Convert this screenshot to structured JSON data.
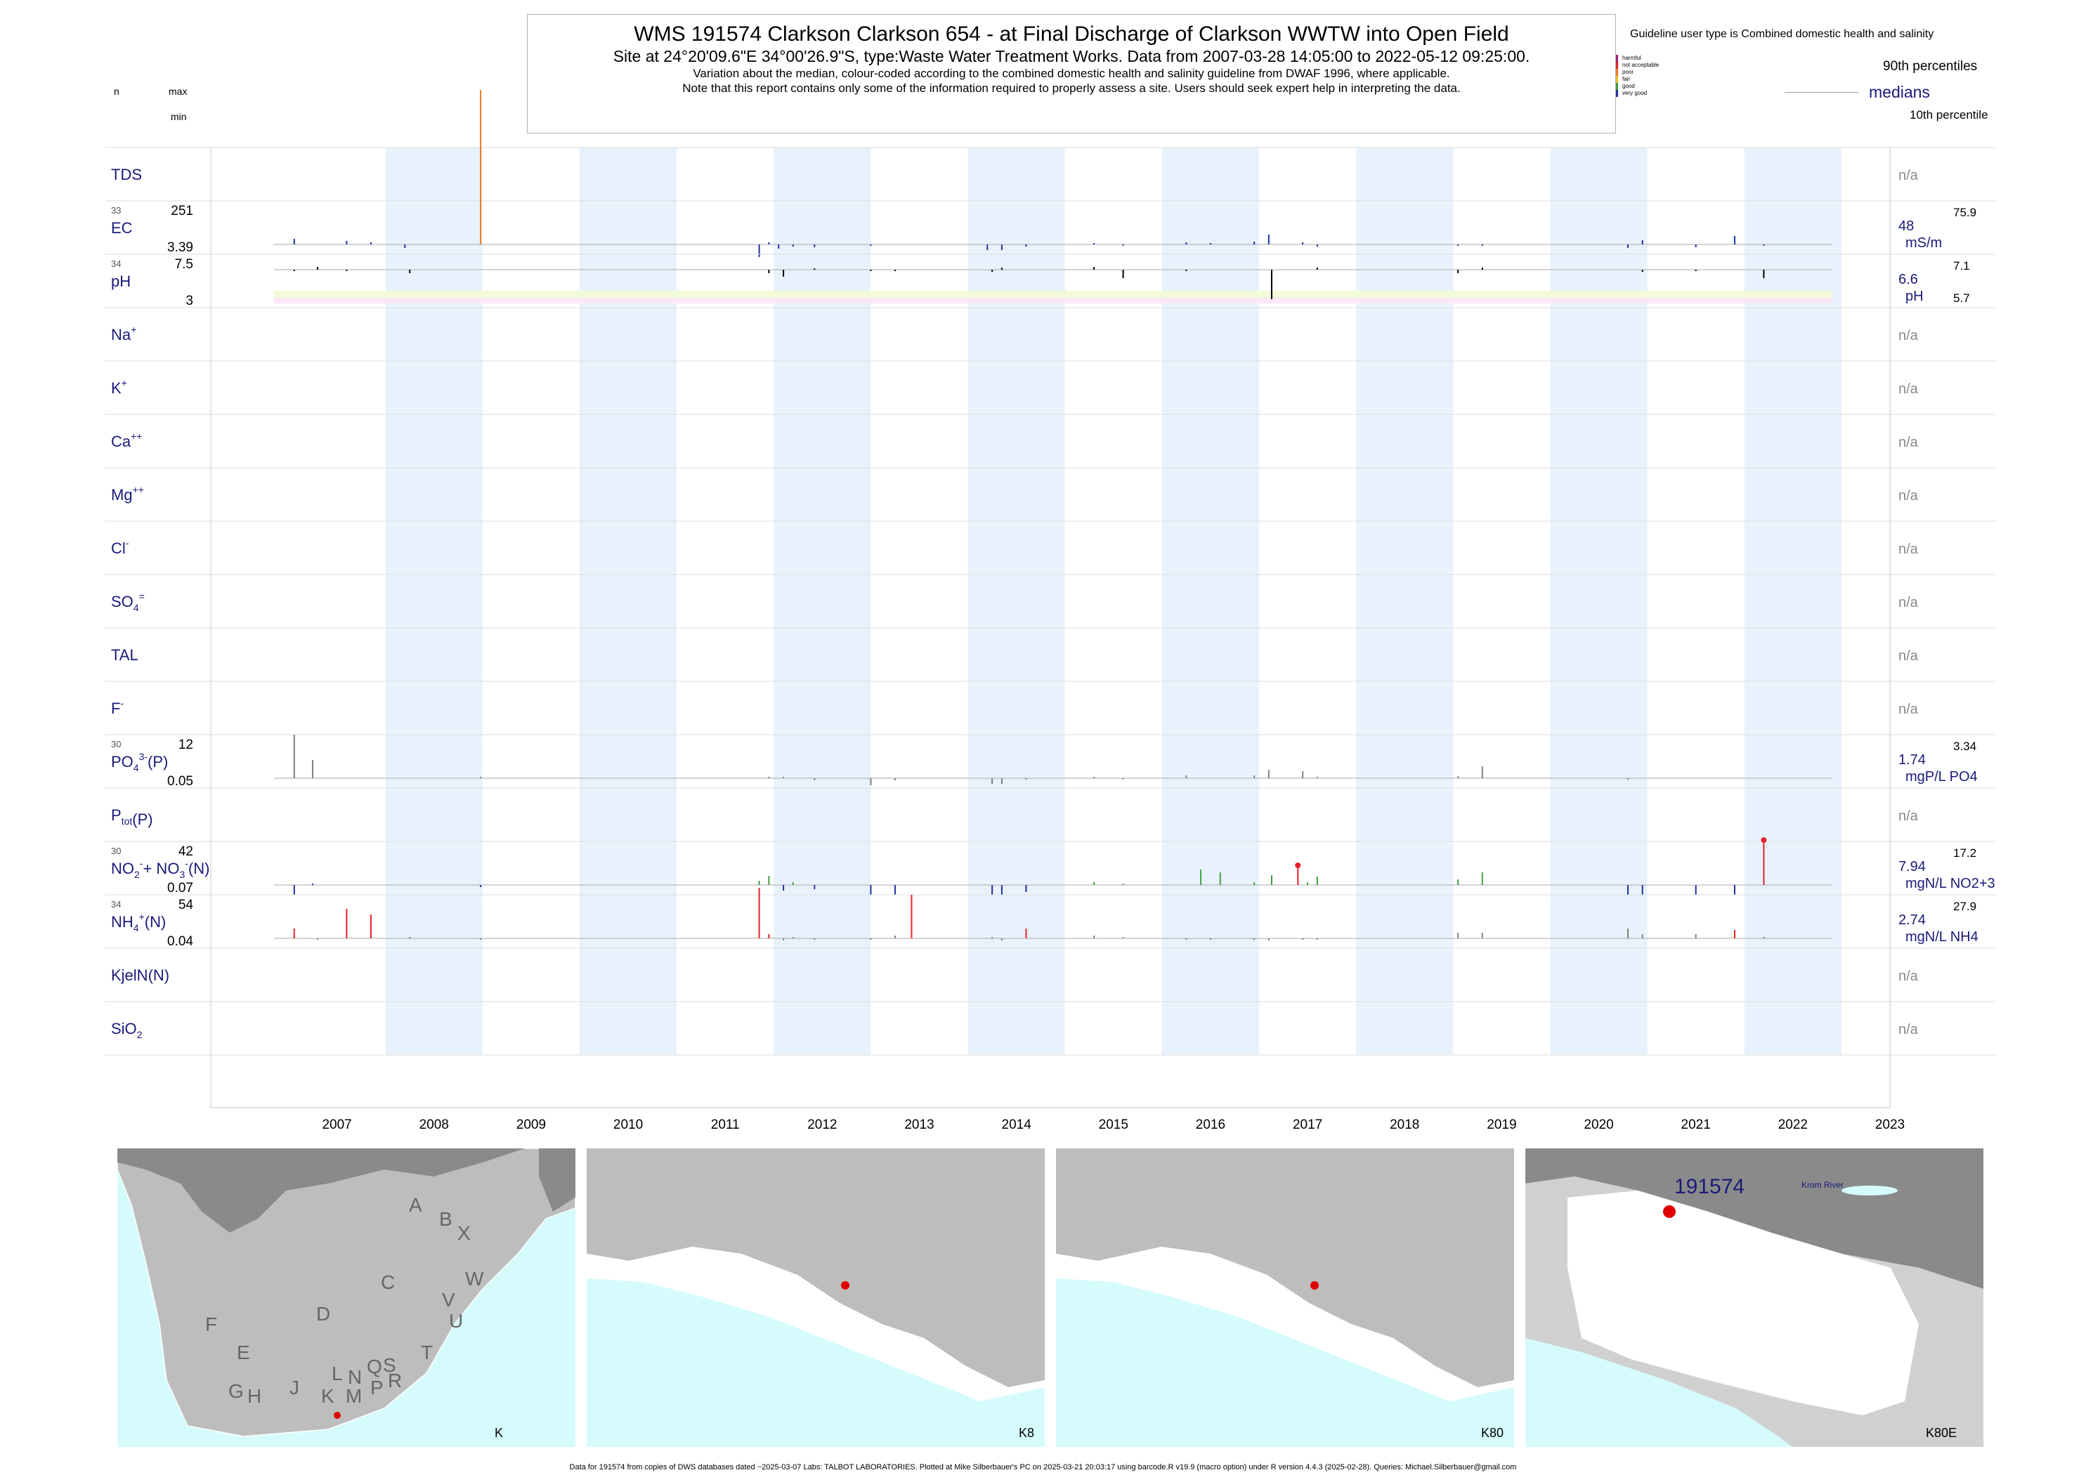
{
  "header": {
    "title": "WMS 191574  Clarkson Clarkson 654 - at Final Discharge of Clarkson WWTW into Open Field",
    "subtitle": "Site at 24°20'09.6\"E 34°00'26.9\"S, type:Waste Water Treatment Works.  Data from 2007-03-28 14:05:00 to 2022-05-12 09:25:00.",
    "note1": "Variation about the median,  colour-coded according to the combined domestic health and salinity guideline from DWAF 1996, where applicable.",
    "note2": "Note that this report contains only some of the information required to properly assess a site. Users should seek expert help in interpreting the data."
  },
  "legend": {
    "n_label": "n",
    "max_label": "max",
    "min_label": "min",
    "guideline_title": "Guideline user type is Combined domestic health and salinity",
    "classes": [
      {
        "label": "harmful",
        "color": "#a0207a"
      },
      {
        "label": "not acceptable",
        "color": "#e8202a"
      },
      {
        "label": "poor",
        "color": "#f07820"
      },
      {
        "label": "fair",
        "color": "#e8c020"
      },
      {
        "label": "good",
        "color": "#40a040"
      },
      {
        "label": "very good",
        "color": "#2030a0"
      }
    ],
    "p90": "90th percentiles",
    "medians": "medians",
    "p10": "10th percentile"
  },
  "chart_data": {
    "type": "bar",
    "x_ticks": [
      "2007",
      "2008",
      "2009",
      "2010",
      "2011",
      "2012",
      "2013",
      "2014",
      "2015",
      "2016",
      "2017",
      "2018",
      "2019",
      "2020",
      "2021",
      "2022",
      "2023"
    ],
    "xlim": [
      2006.2,
      2023.5
    ],
    "highlight_years": [
      2008,
      2010,
      2012,
      2014,
      2016,
      2018,
      2020,
      2022
    ],
    "rows": [
      {
        "id": "TDS",
        "label": "TDS",
        "na": "n/a"
      },
      {
        "id": "EC",
        "label": "EC",
        "n": "33",
        "max": "251",
        "min": "3.39",
        "median": "48",
        "p90": "75.9",
        "unit": "mS/m",
        "events": [
          [
            2007.06,
            8,
            "#2030a0"
          ],
          [
            2007.6,
            5,
            "#2030a0"
          ],
          [
            2007.85,
            3,
            "#2030a0"
          ],
          [
            2008.2,
            -5,
            "#2030a0"
          ],
          [
            2008.98,
            220,
            "#f07820"
          ],
          [
            2011.85,
            -18,
            "#2030a0"
          ],
          [
            2011.95,
            3,
            "#2030a0"
          ],
          [
            2012.05,
            -6,
            "#2030a0"
          ],
          [
            2012.2,
            -3,
            "#2030a0"
          ],
          [
            2012.42,
            -4,
            "#2030a0"
          ],
          [
            2013.0,
            -2,
            "#2030a0"
          ],
          [
            2014.2,
            -8,
            "#2030a0"
          ],
          [
            2014.35,
            -8,
            "#2030a0"
          ],
          [
            2014.6,
            -3,
            "#2030a0"
          ],
          [
            2015.3,
            2,
            "#2030a0"
          ],
          [
            2015.6,
            -2,
            "#2030a0"
          ],
          [
            2016.25,
            3,
            "#2030a0"
          ],
          [
            2016.5,
            2,
            "#2030a0"
          ],
          [
            2016.95,
            4,
            "#2030a0"
          ],
          [
            2017.1,
            14,
            "#2030a0"
          ],
          [
            2017.45,
            3,
            "#2030a0"
          ],
          [
            2017.6,
            -3,
            "#2030a0"
          ],
          [
            2019.05,
            -2,
            "#2030a0"
          ],
          [
            2019.3,
            -2,
            "#2030a0"
          ],
          [
            2020.8,
            -5,
            "#2030a0"
          ],
          [
            2020.95,
            6,
            "#2030a0"
          ],
          [
            2021.5,
            -4,
            "#2030a0"
          ],
          [
            2021.9,
            12,
            "#2030a0"
          ],
          [
            2022.2,
            -2,
            "#2030a0"
          ]
        ]
      },
      {
        "id": "pH",
        "label": "pH",
        "n": "34",
        "max": "7.5",
        "min": "3",
        "median": "6.6",
        "p90": "7.1",
        "p10": "5.7",
        "unit": "pH",
        "events": [
          [
            2007.06,
            -2,
            "#000000"
          ],
          [
            2007.3,
            4,
            "#000000"
          ],
          [
            2007.6,
            -2,
            "#000000"
          ],
          [
            2008.25,
            -5,
            "#000000"
          ],
          [
            2011.95,
            -5,
            "#000000"
          ],
          [
            2012.1,
            -10,
            "#000000"
          ],
          [
            2012.42,
            2,
            "#000000"
          ],
          [
            2013.0,
            -2,
            "#000000"
          ],
          [
            2013.25,
            -2,
            "#000000"
          ],
          [
            2014.25,
            -3,
            "#000000"
          ],
          [
            2014.35,
            3,
            "#000000"
          ],
          [
            2015.3,
            4,
            "#000000"
          ],
          [
            2015.6,
            -12,
            "#000000"
          ],
          [
            2016.25,
            -2,
            "#000000"
          ],
          [
            2017.13,
            -42,
            "#000000"
          ],
          [
            2017.6,
            3,
            "#000000"
          ],
          [
            2019.05,
            -5,
            "#000000"
          ],
          [
            2019.3,
            3,
            "#000000"
          ],
          [
            2020.95,
            -3,
            "#000000"
          ],
          [
            2021.5,
            -2,
            "#000000"
          ],
          [
            2022.2,
            -12,
            "#000000"
          ]
        ]
      },
      {
        "id": "Na",
        "label": "Na",
        "sup": "+",
        "na": "n/a"
      },
      {
        "id": "K",
        "label": "K",
        "sup": "+",
        "na": "n/a"
      },
      {
        "id": "Ca",
        "label": "Ca",
        "sup": "++",
        "na": "n/a"
      },
      {
        "id": "Mg",
        "label": "Mg",
        "sup": "++",
        "na": "n/a"
      },
      {
        "id": "Cl",
        "label": "Cl",
        "sup": "-",
        "na": "n/a"
      },
      {
        "id": "SO4",
        "label": "SO",
        "sub": "4",
        "sup": "=",
        "na": "n/a"
      },
      {
        "id": "TAL",
        "label": "TAL",
        "na": "n/a"
      },
      {
        "id": "F",
        "label": "F",
        "sup": "-",
        "na": "n/a"
      },
      {
        "id": "PO4",
        "label": "PO",
        "sub": "4",
        "sup": "3-",
        "suffix": "(P)",
        "n": "30",
        "max": "12",
        "min": "0.05",
        "median": "1.74",
        "p90": "3.34",
        "unit": "mgP/L PO4",
        "events": [
          [
            2007.06,
            62,
            "#808080"
          ],
          [
            2007.25,
            26,
            "#808080"
          ],
          [
            2008.98,
            2,
            "#808080"
          ],
          [
            2011.95,
            2,
            "#808080"
          ],
          [
            2012.1,
            2,
            "#808080"
          ],
          [
            2012.42,
            -3,
            "#808080"
          ],
          [
            2013.0,
            -10,
            "#808080"
          ],
          [
            2013.25,
            -3,
            "#808080"
          ],
          [
            2014.25,
            -8,
            "#808080"
          ],
          [
            2014.35,
            -8,
            "#808080"
          ],
          [
            2014.6,
            -2,
            "#808080"
          ],
          [
            2015.3,
            2,
            "#808080"
          ],
          [
            2015.6,
            -2,
            "#808080"
          ],
          [
            2016.25,
            4,
            "#808080"
          ],
          [
            2016.95,
            4,
            "#808080"
          ],
          [
            2017.1,
            12,
            "#808080"
          ],
          [
            2017.45,
            10,
            "#808080"
          ],
          [
            2017.6,
            2,
            "#808080"
          ],
          [
            2019.05,
            3,
            "#808080"
          ],
          [
            2019.3,
            17,
            "#808080"
          ],
          [
            2020.8,
            -2,
            "#808080"
          ]
        ]
      },
      {
        "id": "Ptot",
        "label": "P",
        "sub": "tot",
        "suffix": "(P)",
        "na": "n/a"
      },
      {
        "id": "NOx",
        "label": "NO",
        "sub": "2",
        "sup": "-",
        "extra": "+ NO",
        "sub2": "3",
        "sup2": "-",
        "suffix": "(N)",
        "n": "30",
        "max": "42",
        "min": "0.07",
        "median": "7.94",
        "p90": "17.2",
        "unit": "mgN/L NO2+3",
        "events": [
          [
            2007.06,
            -14,
            "#2030a0"
          ],
          [
            2007.25,
            2,
            "#2030a0"
          ],
          [
            2008.98,
            -3,
            "#2030a0"
          ],
          [
            2011.85,
            6,
            "#40a040"
          ],
          [
            2011.95,
            13,
            "#40a040"
          ],
          [
            2012.1,
            -8,
            "#2030a0"
          ],
          [
            2012.2,
            4,
            "#40a040"
          ],
          [
            2012.42,
            -6,
            "#2030a0"
          ],
          [
            2013.0,
            -14,
            "#2030a0"
          ],
          [
            2013.25,
            -14,
            "#2030a0"
          ],
          [
            2014.25,
            -14,
            "#2030a0"
          ],
          [
            2014.35,
            -14,
            "#2030a0"
          ],
          [
            2014.6,
            -10,
            "#2030a0"
          ],
          [
            2015.3,
            4,
            "#40a040"
          ],
          [
            2015.6,
            2,
            "#40a040"
          ],
          [
            2016.4,
            22,
            "#40a040"
          ],
          [
            2016.6,
            18,
            "#40a040"
          ],
          [
            2016.95,
            4,
            "#40a040"
          ],
          [
            2017.13,
            14,
            "#40a040"
          ],
          [
            2017.4,
            28,
            "#e8202a"
          ],
          [
            2017.5,
            4,
            "#40a040"
          ],
          [
            2017.6,
            12,
            "#40a040"
          ],
          [
            2019.05,
            8,
            "#40a040"
          ],
          [
            2019.3,
            18,
            "#40a040"
          ],
          [
            2020.8,
            -14,
            "#2030a0"
          ],
          [
            2020.95,
            -14,
            "#2030a0"
          ],
          [
            2021.5,
            -14,
            "#2030a0"
          ],
          [
            2021.9,
            -14,
            "#2030a0"
          ],
          [
            2022.2,
            64,
            "#e8202a"
          ]
        ]
      },
      {
        "id": "NH4",
        "label": "NH",
        "sub": "4",
        "sup": "+",
        "suffix": "(N)",
        "n": "34",
        "max": "54",
        "min": "0.04",
        "median": "2.74",
        "p90": "27.9",
        "unit": "mgN/L NH4",
        "events": [
          [
            2007.06,
            14,
            "#e8202a"
          ],
          [
            2007.3,
            -2,
            "#808080"
          ],
          [
            2007.6,
            42,
            "#e8202a"
          ],
          [
            2007.85,
            34,
            "#e8202a"
          ],
          [
            2008.25,
            2,
            "#808080"
          ],
          [
            2008.98,
            -2,
            "#808080"
          ],
          [
            2011.85,
            72,
            "#e8202a"
          ],
          [
            2011.95,
            6,
            "#e8202a"
          ],
          [
            2012.1,
            -3,
            "#808080"
          ],
          [
            2012.2,
            2,
            "#808080"
          ],
          [
            2012.42,
            -2,
            "#808080"
          ],
          [
            2013.0,
            -2,
            "#808080"
          ],
          [
            2013.25,
            4,
            "#808080"
          ],
          [
            2013.42,
            62,
            "#e8202a"
          ],
          [
            2014.25,
            2,
            "#808080"
          ],
          [
            2014.35,
            -3,
            "#808080"
          ],
          [
            2014.6,
            14,
            "#e8202a"
          ],
          [
            2015.3,
            4,
            "#808080"
          ],
          [
            2015.6,
            2,
            "#808080"
          ],
          [
            2016.25,
            -2,
            "#808080"
          ],
          [
            2016.5,
            -2,
            "#808080"
          ],
          [
            2016.95,
            -2,
            "#808080"
          ],
          [
            2017.1,
            -3,
            "#808080"
          ],
          [
            2017.45,
            -2,
            "#808080"
          ],
          [
            2017.6,
            -2,
            "#808080"
          ],
          [
            2019.05,
            8,
            "#808080"
          ],
          [
            2019.3,
            8,
            "#808080"
          ],
          [
            2020.8,
            14,
            "#808080"
          ],
          [
            2020.95,
            6,
            "#808080"
          ],
          [
            2021.5,
            6,
            "#808080"
          ],
          [
            2021.9,
            12,
            "#e8202a"
          ],
          [
            2022.2,
            2,
            "#808080"
          ]
        ]
      },
      {
        "id": "Kjel",
        "label": "KjelN(N)",
        "na": "n/a"
      },
      {
        "id": "SiO2",
        "label": "SiO",
        "sub": "2",
        "na": "n/a"
      }
    ]
  },
  "maps": [
    {
      "label": "K",
      "regions": [
        "A",
        "B",
        "X",
        "W",
        "C",
        "V",
        "U",
        "D",
        "T",
        "F",
        "E",
        "G",
        "H",
        "J",
        "K",
        "L",
        "M",
        "N",
        "P",
        "Q",
        "R",
        "S"
      ]
    },
    {
      "label": "K8"
    },
    {
      "label": "K80"
    },
    {
      "label": "K80E",
      "site": "191574",
      "river": "Krom River"
    }
  ],
  "footer": "Data for 191574 from copies of DWS databases dated ~2025-03-07 Labs: TALBOT LABORATORIES. Plotted at Mike Silberbauer's PC on 2025-03-21 20:03:17 using barcode.R v19.9 (macro option) under R version 4.4.3 (2025-02-28). Queries: Michael.Silberbauer@gmail.com",
  "colors": {
    "band": "#e8f2fc",
    "text_blue": "#1a1a7a",
    "sea": "#d6fbfd",
    "land_dark": "#8a8a8a",
    "land_mid": "#bdbdbd"
  }
}
